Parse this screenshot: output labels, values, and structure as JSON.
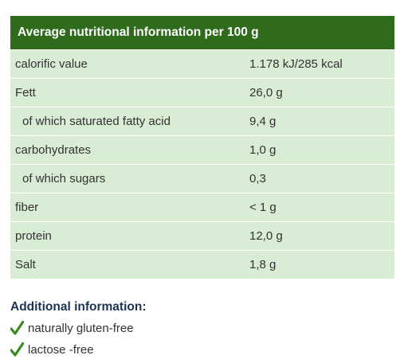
{
  "table": {
    "title": "Average nutritional information per 100 g",
    "rows": [
      [
        "calorific value",
        "1.178 kJ/285 kcal"
      ],
      [
        "Fett",
        "26,0 g"
      ],
      [
        "of which saturated fatty acid",
        "9,4 g"
      ],
      [
        "carbohydrates",
        "1,0 g"
      ],
      [
        "of which sugars",
        "0,3"
      ],
      [
        "fiber",
        "< 1 g"
      ],
      [
        "protein",
        "12,0 g"
      ],
      [
        "Salt",
        "1,8 g"
      ]
    ]
  },
  "additional": {
    "title": "Additional information:",
    "items": [
      "naturally gluten-free",
      "lactose -free"
    ]
  }
}
